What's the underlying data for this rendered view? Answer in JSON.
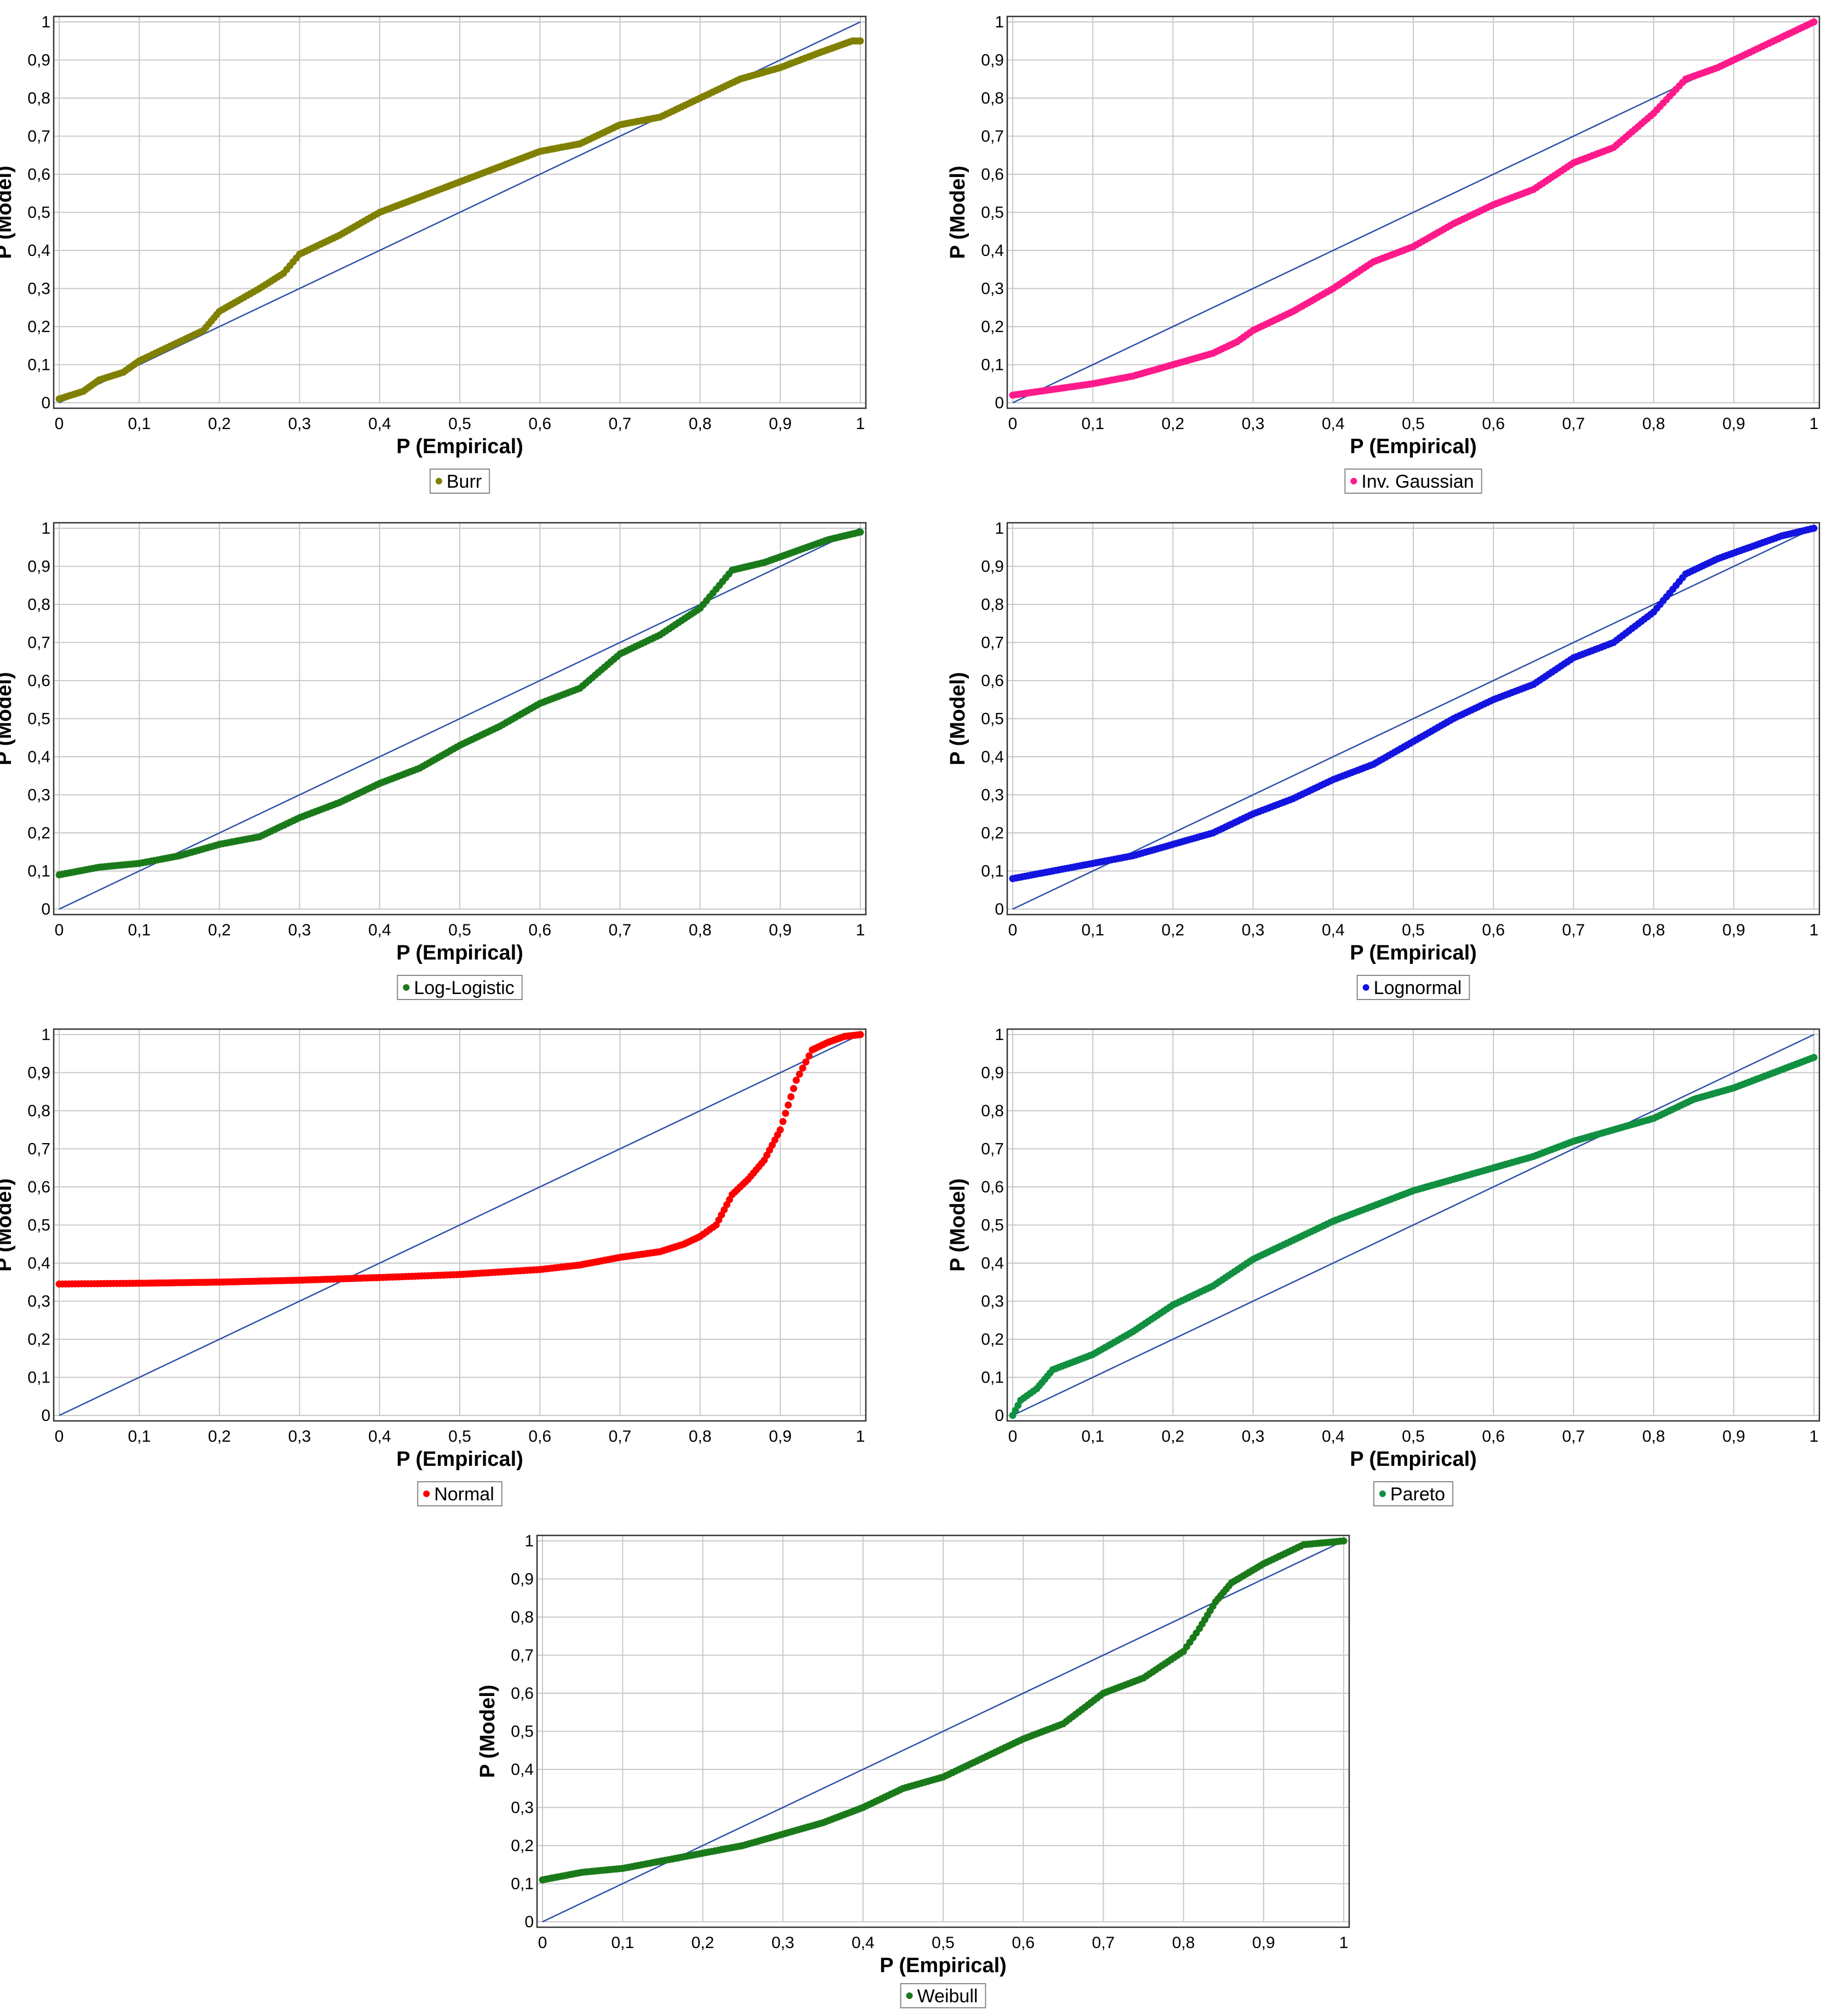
{
  "axis_labels": {
    "x": "P (Empirical)",
    "y": "P (Model)"
  },
  "tick_labels": [
    "0",
    "0,1",
    "0,2",
    "0,3",
    "0,4",
    "0,5",
    "0,6",
    "0,7",
    "0,8",
    "0,9",
    "1"
  ],
  "chart_data": [
    {
      "type": "scatter",
      "legend": "Burr",
      "color": "#808000",
      "xlabel": "P (Empirical)",
      "ylabel": "P (Model)",
      "xlim": [
        0,
        1
      ],
      "ylim": [
        0,
        1
      ],
      "grid": true,
      "legend_placement": "bottom-center",
      "reference_line": "y = x",
      "x": [
        0,
        0.03,
        0.05,
        0.08,
        0.1,
        0.12,
        0.15,
        0.18,
        0.2,
        0.25,
        0.28,
        0.3,
        0.35,
        0.4,
        0.45,
        0.5,
        0.55,
        0.6,
        0.65,
        0.7,
        0.75,
        0.8,
        0.85,
        0.9,
        0.95,
        0.99,
        1.0
      ],
      "y": [
        0.01,
        0.03,
        0.06,
        0.08,
        0.11,
        0.13,
        0.16,
        0.19,
        0.24,
        0.3,
        0.34,
        0.39,
        0.44,
        0.5,
        0.54,
        0.58,
        0.62,
        0.66,
        0.68,
        0.73,
        0.75,
        0.8,
        0.85,
        0.88,
        0.92,
        0.95,
        0.95
      ]
    },
    {
      "type": "scatter",
      "legend": "Inv. Gaussian",
      "color": "#ff1a8c",
      "xlabel": "P (Empirical)",
      "ylabel": "P (Model)",
      "xlim": [
        0,
        1
      ],
      "ylim": [
        0,
        1
      ],
      "grid": true,
      "legend_placement": "bottom-center",
      "reference_line": "y = x",
      "x": [
        0,
        0.05,
        0.1,
        0.15,
        0.2,
        0.25,
        0.28,
        0.3,
        0.35,
        0.4,
        0.45,
        0.5,
        0.55,
        0.6,
        0.65,
        0.7,
        0.75,
        0.8,
        0.84,
        0.88,
        0.92,
        0.96,
        1.0
      ],
      "y": [
        0.02,
        0.035,
        0.05,
        0.07,
        0.1,
        0.13,
        0.16,
        0.19,
        0.24,
        0.3,
        0.37,
        0.41,
        0.47,
        0.52,
        0.56,
        0.63,
        0.67,
        0.76,
        0.85,
        0.88,
        0.92,
        0.96,
        1.0
      ]
    },
    {
      "type": "scatter",
      "legend": "Log-Logistic",
      "color": "#1a7a1a",
      "xlabel": "P (Empirical)",
      "ylabel": "P (Model)",
      "xlim": [
        0,
        1
      ],
      "ylim": [
        0,
        1
      ],
      "grid": true,
      "legend_placement": "bottom-center",
      "reference_line": "y = x",
      "x": [
        0,
        0.05,
        0.1,
        0.15,
        0.2,
        0.25,
        0.3,
        0.35,
        0.4,
        0.45,
        0.5,
        0.55,
        0.6,
        0.65,
        0.7,
        0.75,
        0.8,
        0.84,
        0.88,
        0.92,
        0.96,
        1.0
      ],
      "y": [
        0.09,
        0.11,
        0.12,
        0.14,
        0.17,
        0.19,
        0.24,
        0.28,
        0.33,
        0.37,
        0.43,
        0.48,
        0.54,
        0.58,
        0.67,
        0.72,
        0.79,
        0.89,
        0.91,
        0.94,
        0.97,
        0.99
      ]
    },
    {
      "type": "scatter",
      "legend": "Lognormal",
      "color": "#1414e0",
      "xlabel": "P (Empirical)",
      "ylabel": "P (Model)",
      "xlim": [
        0,
        1
      ],
      "ylim": [
        0,
        1
      ],
      "grid": true,
      "legend_placement": "bottom-center",
      "reference_line": "y = x",
      "x": [
        0,
        0.05,
        0.1,
        0.15,
        0.2,
        0.25,
        0.3,
        0.35,
        0.4,
        0.45,
        0.5,
        0.55,
        0.6,
        0.65,
        0.7,
        0.75,
        0.8,
        0.84,
        0.88,
        0.92,
        0.96,
        1.0
      ],
      "y": [
        0.08,
        0.1,
        0.12,
        0.14,
        0.17,
        0.2,
        0.25,
        0.29,
        0.34,
        0.38,
        0.44,
        0.5,
        0.55,
        0.59,
        0.66,
        0.7,
        0.78,
        0.88,
        0.92,
        0.95,
        0.98,
        1.0
      ]
    },
    {
      "type": "scatter",
      "legend": "Normal",
      "color": "#ff0000",
      "xlabel": "P (Empirical)",
      "ylabel": "P (Model)",
      "xlim": [
        0,
        1
      ],
      "ylim": [
        0,
        1
      ],
      "grid": true,
      "legend_placement": "bottom-center",
      "reference_line": "y = x",
      "x": [
        0,
        0.1,
        0.2,
        0.3,
        0.4,
        0.5,
        0.6,
        0.65,
        0.7,
        0.75,
        0.78,
        0.8,
        0.82,
        0.84,
        0.86,
        0.88,
        0.9,
        0.92,
        0.94,
        0.96,
        0.98,
        1.0
      ],
      "y": [
        0.345,
        0.347,
        0.35,
        0.355,
        0.362,
        0.37,
        0.383,
        0.395,
        0.415,
        0.43,
        0.45,
        0.47,
        0.5,
        0.58,
        0.62,
        0.67,
        0.75,
        0.88,
        0.96,
        0.98,
        0.995,
        1.0
      ]
    },
    {
      "type": "scatter",
      "legend": "Pareto",
      "color": "#109040",
      "xlabel": "P (Empirical)",
      "ylabel": "P (Model)",
      "xlim": [
        0,
        1
      ],
      "ylim": [
        0,
        1
      ],
      "grid": true,
      "legend_placement": "bottom-center",
      "reference_line": "y = x",
      "x": [
        0,
        0.01,
        0.03,
        0.05,
        0.1,
        0.15,
        0.2,
        0.25,
        0.3,
        0.35,
        0.4,
        0.45,
        0.5,
        0.55,
        0.6,
        0.65,
        0.7,
        0.75,
        0.8,
        0.85,
        0.9,
        0.95,
        1.0
      ],
      "y": [
        0.0,
        0.04,
        0.07,
        0.12,
        0.16,
        0.22,
        0.29,
        0.34,
        0.41,
        0.46,
        0.51,
        0.55,
        0.59,
        0.62,
        0.65,
        0.68,
        0.72,
        0.75,
        0.78,
        0.83,
        0.86,
        0.9,
        0.94
      ]
    },
    {
      "type": "scatter",
      "legend": "Weibull",
      "color": "#1a7a1a",
      "xlabel": "P (Empirical)",
      "ylabel": "P (Model)",
      "xlim": [
        0,
        1
      ],
      "ylim": [
        0,
        1
      ],
      "grid": true,
      "legend_placement": "bottom-center",
      "reference_line": "y = x",
      "x": [
        0,
        0.05,
        0.1,
        0.15,
        0.2,
        0.25,
        0.3,
        0.35,
        0.4,
        0.45,
        0.5,
        0.55,
        0.6,
        0.65,
        0.7,
        0.75,
        0.8,
        0.82,
        0.84,
        0.86,
        0.9,
        0.95,
        1.0
      ],
      "y": [
        0.11,
        0.13,
        0.14,
        0.16,
        0.18,
        0.2,
        0.23,
        0.26,
        0.3,
        0.35,
        0.38,
        0.43,
        0.48,
        0.52,
        0.6,
        0.64,
        0.71,
        0.77,
        0.84,
        0.89,
        0.94,
        0.99,
        1.0
      ]
    }
  ]
}
